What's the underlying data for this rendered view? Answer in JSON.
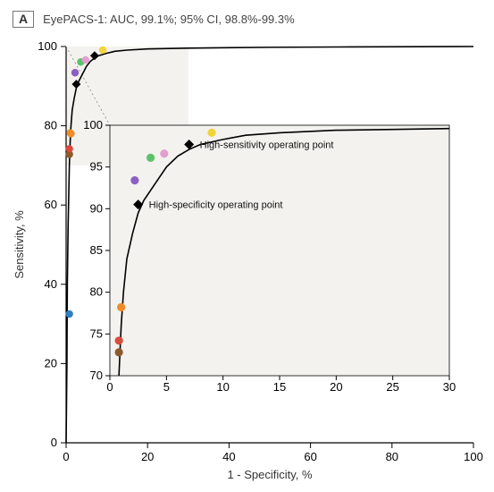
{
  "panel": {
    "letter": "A",
    "title": "EyePACS-1: AUC, 99.1%; 95% CI, 98.8%-99.3%"
  },
  "main_chart": {
    "type": "roc",
    "xlabel": "1 - Specificity, %",
    "ylabel": "Sensitivity, %",
    "xlim": [
      0,
      100
    ],
    "ylim": [
      0,
      100
    ],
    "xticks": [
      0,
      20,
      40,
      60,
      80,
      100
    ],
    "yticks": [
      0,
      20,
      40,
      60,
      80,
      100
    ],
    "label_fontsize": 13,
    "tick_fontsize": 12,
    "background_color": "#ffffff",
    "line_color": "#000000",
    "line_width": 1.6,
    "shade_region": {
      "x": [
        0,
        30
      ],
      "y": [
        70,
        100
      ],
      "color": "#f3f2ee"
    },
    "roc_curve": [
      [
        0,
        0
      ],
      [
        0.2,
        20
      ],
      [
        0.3,
        40
      ],
      [
        0.5,
        55
      ],
      [
        0.8,
        70
      ],
      [
        1.0,
        76
      ],
      [
        1.2,
        80
      ],
      [
        1.5,
        84
      ],
      [
        2,
        87
      ],
      [
        2.5,
        89.5
      ],
      [
        3,
        91
      ],
      [
        4,
        93
      ],
      [
        5,
        95
      ],
      [
        6,
        96.3
      ],
      [
        7,
        97.1
      ],
      [
        8,
        97.7
      ],
      [
        10,
        98.3
      ],
      [
        12,
        98.8
      ],
      [
        15,
        99.1
      ],
      [
        20,
        99.4
      ],
      [
        30,
        99.6
      ],
      [
        50,
        99.8
      ],
      [
        70,
        99.9
      ],
      [
        100,
        100
      ]
    ],
    "operating_points": [
      {
        "name": "high-specificity",
        "x": 2.5,
        "y": 90.5,
        "marker": "diamond",
        "color": "#000000"
      },
      {
        "name": "high-sensitivity",
        "x": 7.0,
        "y": 97.7,
        "marker": "diamond",
        "color": "#000000"
      }
    ],
    "scatter": [
      {
        "x": 0.8,
        "y": 32.5,
        "color": "#2f7fbf"
      },
      {
        "x": 0.8,
        "y": 72.8,
        "color": "#8c5a2b"
      },
      {
        "x": 0.8,
        "y": 74.2,
        "color": "#d84c3a"
      },
      {
        "x": 1.0,
        "y": 78.2,
        "color": "#f08b2c"
      },
      {
        "x": 1.2,
        "y": 78.0,
        "color": "#f08b2c"
      },
      {
        "x": 2.2,
        "y": 93.4,
        "color": "#8c5fc2"
      },
      {
        "x": 3.6,
        "y": 96.1,
        "color": "#5cc26a"
      },
      {
        "x": 4.8,
        "y": 96.6,
        "color": "#e39fd0"
      },
      {
        "x": 9.0,
        "y": 99.1,
        "color": "#f2d43a"
      }
    ],
    "marker_radius": 4.2
  },
  "inset_chart": {
    "type": "roc-zoom",
    "xlim": [
      0,
      30
    ],
    "ylim": [
      70,
      100
    ],
    "xticks": [
      0,
      5,
      10,
      15,
      20,
      25,
      30
    ],
    "yticks": [
      70,
      75,
      80,
      85,
      90,
      95,
      100
    ],
    "background_color": "#f3f2ee",
    "line_color": "#000000",
    "line_width": 1.4,
    "roc_curve": [
      [
        0.8,
        70
      ],
      [
        1.0,
        76
      ],
      [
        1.2,
        80
      ],
      [
        1.5,
        84
      ],
      [
        2,
        87
      ],
      [
        2.5,
        89.5
      ],
      [
        3,
        91
      ],
      [
        4,
        93
      ],
      [
        5,
        95
      ],
      [
        6,
        96.3
      ],
      [
        7,
        97.1
      ],
      [
        8,
        97.7
      ],
      [
        10,
        98.3
      ],
      [
        12,
        98.8
      ],
      [
        15,
        99.1
      ],
      [
        20,
        99.4
      ],
      [
        25,
        99.5
      ],
      [
        30,
        99.6
      ]
    ],
    "operating_points": [
      {
        "name": "high-specificity",
        "x": 2.5,
        "y": 90.5,
        "label": "High-specificity operating point"
      },
      {
        "name": "high-sensitivity",
        "x": 7.0,
        "y": 97.7,
        "label": "High-sensitivity operating point"
      }
    ],
    "scatter": [
      {
        "x": 0.8,
        "y": 72.8,
        "color": "#8c5a2b"
      },
      {
        "x": 0.8,
        "y": 74.2,
        "color": "#d84c3a"
      },
      {
        "x": 1.0,
        "y": 78.2,
        "color": "#f08b2c"
      },
      {
        "x": 2.2,
        "y": 93.4,
        "color": "#8c5fc2"
      },
      {
        "x": 3.6,
        "y": 96.1,
        "color": "#5cc26a"
      },
      {
        "x": 4.8,
        "y": 96.6,
        "color": "#e39fd0"
      },
      {
        "x": 9.0,
        "y": 99.1,
        "color": "#f2d43a"
      }
    ],
    "marker_radius": 4.6,
    "anno_fontsize": 11
  },
  "guide_lines": [
    {
      "from_main": [
        0,
        100
      ],
      "to_inset_corner": "tl"
    },
    {
      "from_main": [
        30,
        70
      ],
      "to_inset_corner": "br"
    }
  ]
}
